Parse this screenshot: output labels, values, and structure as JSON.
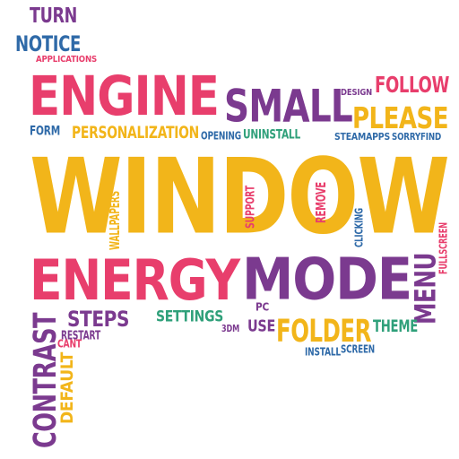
{
  "palette": {
    "purple": "#7b3a8f",
    "yellow": "#f2b51a",
    "pink": "#e83e6c",
    "blue": "#2f6aa8",
    "green": "#2fa07a"
  },
  "words": [
    {
      "id": "turn",
      "text": "TURN",
      "color": "purple"
    },
    {
      "id": "notice",
      "text": "NOTICE",
      "color": "blue"
    },
    {
      "id": "applications",
      "text": "APPLICATIONS",
      "color": "pink"
    },
    {
      "id": "engine",
      "text": "ENGINE",
      "color": "pink"
    },
    {
      "id": "small",
      "text": "SMALL",
      "color": "purple"
    },
    {
      "id": "design",
      "text": "DESIGN",
      "color": "purple"
    },
    {
      "id": "follow",
      "text": "FOLLOW",
      "color": "pink"
    },
    {
      "id": "please",
      "text": "PLEASE",
      "color": "yellow"
    },
    {
      "id": "form",
      "text": "FORM",
      "color": "blue"
    },
    {
      "id": "personalization",
      "text": "PERSONALIZATION",
      "color": "yellow"
    },
    {
      "id": "opening",
      "text": "OPENING",
      "color": "blue"
    },
    {
      "id": "uninstall",
      "text": "UNINSTALL",
      "color": "green"
    },
    {
      "id": "steamapps",
      "text": "STEAMAPPS",
      "color": "blue"
    },
    {
      "id": "sorryfind",
      "text": "SORRYFIND",
      "color": "blue"
    },
    {
      "id": "window",
      "text": "WINDOW",
      "color": "yellow"
    },
    {
      "id": "wallpapers",
      "text": "WALLPAPERS",
      "color": "yellow"
    },
    {
      "id": "support",
      "text": "SUPPORT",
      "color": "pink"
    },
    {
      "id": "remove",
      "text": "REMOVE",
      "color": "pink"
    },
    {
      "id": "clicking",
      "text": "CLICKING",
      "color": "blue"
    },
    {
      "id": "fullscreen",
      "text": "FULLSCREEN",
      "color": "pink"
    },
    {
      "id": "energy",
      "text": "ENERGY",
      "color": "pink"
    },
    {
      "id": "mode",
      "text": "MODE",
      "color": "purple"
    },
    {
      "id": "menu",
      "text": "MENU",
      "color": "purple"
    },
    {
      "id": "steps",
      "text": "STEPS",
      "color": "purple"
    },
    {
      "id": "settings",
      "text": "SETTINGS",
      "color": "green"
    },
    {
      "id": "pc",
      "text": "PC",
      "color": "purple"
    },
    {
      "id": "3dm",
      "text": "3DM",
      "color": "purple"
    },
    {
      "id": "use",
      "text": "USE",
      "color": "purple"
    },
    {
      "id": "folder",
      "text": "FOLDER",
      "color": "yellow"
    },
    {
      "id": "theme",
      "text": "THEME",
      "color": "green"
    },
    {
      "id": "restart",
      "text": "RESTART",
      "color": "purple"
    },
    {
      "id": "cant",
      "text": "CANT",
      "color": "pink"
    },
    {
      "id": "install",
      "text": "INSTALL",
      "color": "blue"
    },
    {
      "id": "screen",
      "text": "SCREEN",
      "color": "blue"
    },
    {
      "id": "contrast",
      "text": "CONTRAST",
      "color": "purple"
    },
    {
      "id": "default",
      "text": "DEFAULT",
      "color": "yellow"
    }
  ]
}
